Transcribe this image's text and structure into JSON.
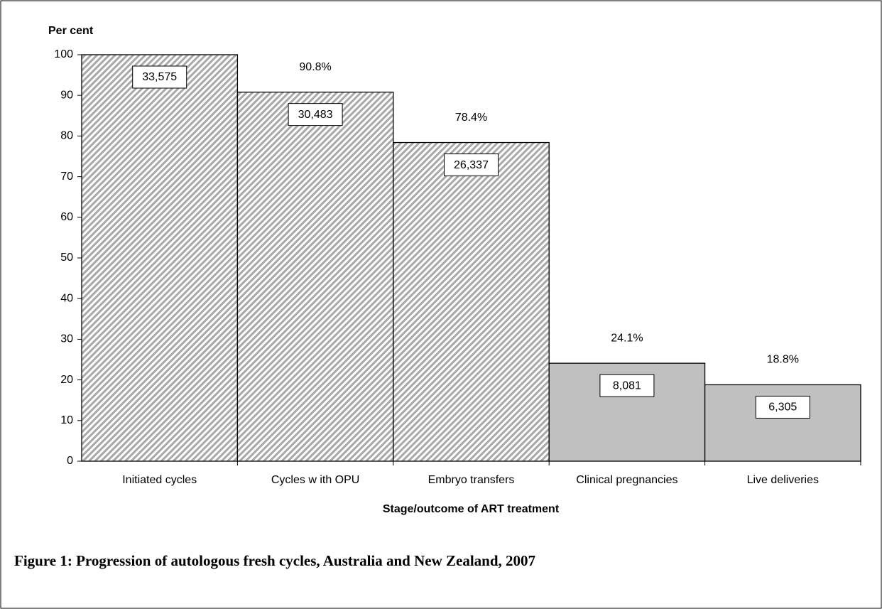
{
  "chart_data": {
    "type": "bar",
    "y_label": "Per cent",
    "x_label": "Stage/outcome of ART treatment",
    "caption": "Figure 1: Progression of autologous fresh cycles, Australia and New Zealand, 2007",
    "categories": [
      "Initiated cycles",
      "Cycles w ith OPU",
      "Embryo transfers",
      "Clinical pregnancies",
      "Live deliveries"
    ],
    "values": [
      100,
      90.8,
      78.4,
      24.1,
      18.8
    ],
    "value_labels": [
      null,
      "90.8%",
      "78.4%",
      "24.1%",
      "18.8%"
    ],
    "counts": [
      33575,
      30483,
      26337,
      8081,
      6305
    ],
    "count_labels": [
      "33,575",
      "30,483",
      "26,337",
      "8,081",
      "6,305"
    ],
    "colors": [
      "#d0d0d0",
      "#d0d0d0",
      "#d0d0d0",
      "#c0c0c0",
      "#c0c0c0"
    ],
    "hatch": [
      true,
      true,
      true,
      false,
      false
    ],
    "ylim": [
      0,
      100
    ],
    "yticks": [
      0,
      10,
      20,
      30,
      40,
      50,
      60,
      70,
      80,
      90,
      100
    ]
  }
}
